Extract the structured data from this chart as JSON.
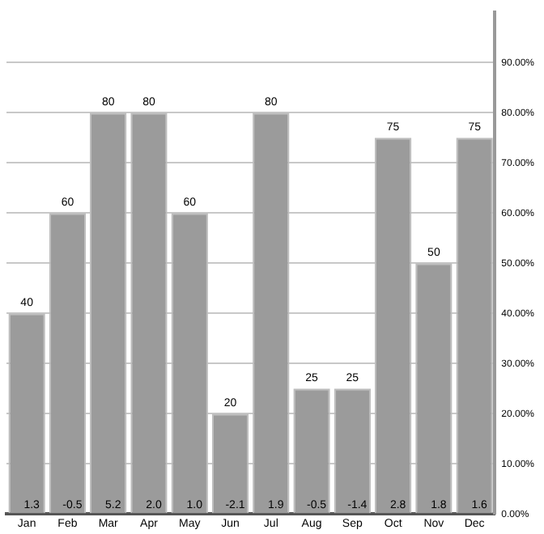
{
  "chart_data": {
    "type": "bar",
    "categories": [
      "Jan",
      "Feb",
      "Mar",
      "Apr",
      "May",
      "Jun",
      "Jul",
      "Aug",
      "Sep",
      "Oct",
      "Nov",
      "Dec"
    ],
    "values": [
      40,
      60,
      80,
      80,
      60,
      20,
      80,
      25,
      25,
      75,
      50,
      75
    ],
    "color": "#9b9b9b",
    "data_labels": true,
    "annotations": [
      {
        "text": "1.3",
        "x": "Jan",
        "y": 0
      },
      {
        "text": "-0.5",
        "x": "Feb",
        "y": 0
      },
      {
        "text": "5.2",
        "x": "Mar",
        "y": 0
      },
      {
        "text": "2.0",
        "x": "Apr",
        "y": 0
      },
      {
        "text": "1.0",
        "x": "May",
        "y": 0
      },
      {
        "text": "-2.1",
        "x": "Jun",
        "y": 0
      },
      {
        "text": "1.9",
        "x": "Jul",
        "y": 0
      },
      {
        "text": "-0.5",
        "x": "Aug",
        "y": 0
      },
      {
        "text": "-1.4",
        "x": "Sep",
        "y": 0
      },
      {
        "text": "2.8",
        "x": "Oct",
        "y": 0
      },
      {
        "text": "1.8",
        "x": "Nov",
        "y": 0
      },
      {
        "text": "1.6",
        "x": "Dec",
        "y": 0
      }
    ],
    "ylim": [
      0,
      100
    ],
    "yticks": [
      {
        "value": 0,
        "label": "0.00%"
      },
      {
        "value": 10,
        "label": "10.00%"
      },
      {
        "value": 20,
        "label": "20.00%"
      },
      {
        "value": 30,
        "label": "30.00%"
      },
      {
        "value": 40,
        "label": "40.00%"
      },
      {
        "value": 50,
        "label": "50.00%"
      },
      {
        "value": 60,
        "label": "60.00%"
      },
      {
        "value": 70,
        "label": "70.00%"
      },
      {
        "value": 80,
        "label": "80.00%"
      },
      {
        "value": 90,
        "label": "90.00%"
      }
    ],
    "grid": "y",
    "legend": false
  }
}
